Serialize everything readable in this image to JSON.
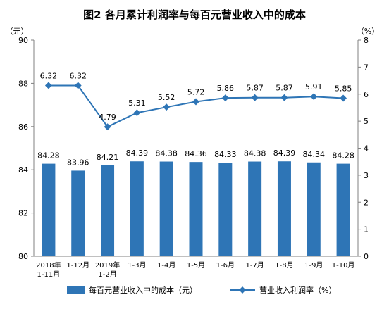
{
  "chart_data": {
    "type": "bar+line",
    "title": "图2  各月累计利润率与每百元营业收入中的成本",
    "left_unit": "（元）",
    "right_unit": "（%）",
    "categories": [
      "2018年\n1-11月",
      "1-12月",
      "2019年\n1-2月",
      "1-3月",
      "1-4月",
      "1-5月",
      "1-6月",
      "1-7月",
      "1-8月",
      "1-9月",
      "1-10月"
    ],
    "left_axis": {
      "min": 80,
      "max": 90,
      "ticks": [
        "80",
        "82",
        "84",
        "86",
        "88",
        "90"
      ]
    },
    "right_axis": {
      "min": 0,
      "max": 8,
      "ticks": [
        "0",
        "1",
        "2",
        "3",
        "4",
        "5",
        "6",
        "7",
        "8"
      ]
    },
    "series": [
      {
        "name": "每百元营业收入中的成本（元）",
        "type": "bar",
        "axis": "left",
        "color": "#2E75B6",
        "values": [
          84.28,
          83.96,
          84.21,
          84.39,
          84.38,
          84.36,
          84.33,
          84.38,
          84.39,
          84.34,
          84.28
        ],
        "labels": [
          "84.28",
          "83.96",
          "84.21",
          "84.39",
          "84.38",
          "84.36",
          "84.33",
          "84.38",
          "84.39",
          "84.34",
          "84.28"
        ]
      },
      {
        "name": "营业收入利润率（%）",
        "type": "line",
        "axis": "right",
        "color": "#2E75B6",
        "values": [
          6.32,
          6.32,
          4.79,
          5.31,
          5.52,
          5.72,
          5.86,
          5.87,
          5.87,
          5.91,
          5.85
        ],
        "labels": [
          "6.32",
          "6.32",
          "4.79",
          "5.31",
          "5.52",
          "5.72",
          "5.86",
          "5.87",
          "5.87",
          "5.91",
          "5.85"
        ]
      }
    ],
    "legend_position": "bottom"
  }
}
